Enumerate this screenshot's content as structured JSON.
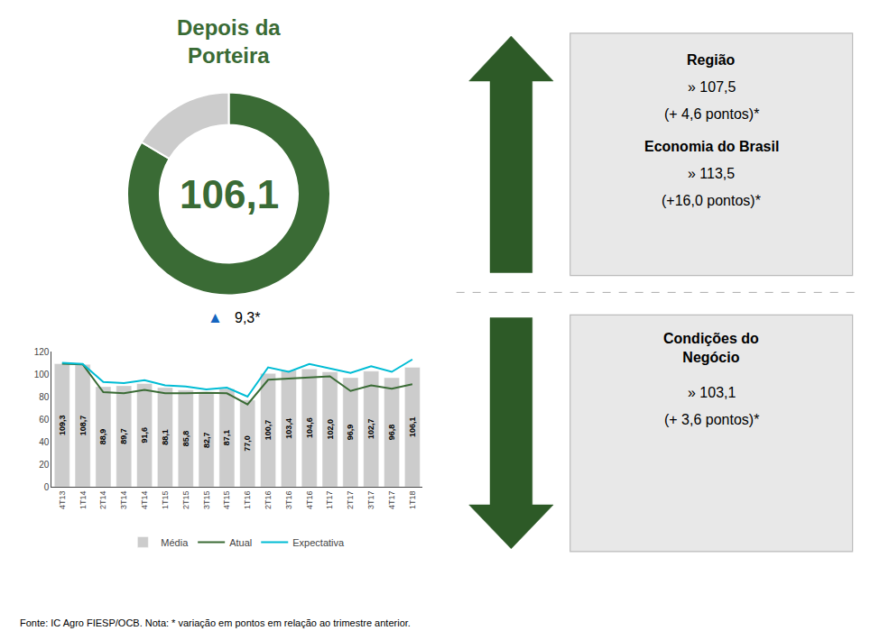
{
  "chart_data": [
    {
      "type": "pie",
      "title": "Depois da\nPorteira",
      "values": [
        0.835,
        0.165
      ],
      "colors": [
        "#3a6b35",
        "#cccccc"
      ],
      "color": "#3a6b35",
      "annotations": [
        {
          "text": "106,1"
        },
        {
          "text": "▲",
          "color": "#1565C0"
        },
        {
          "text": "9,3*"
        }
      ]
    },
    {
      "type": "bar",
      "categories": [
        "4T13",
        "1T14",
        "2T14",
        "3T14",
        "4T14",
        "1T15",
        "2T15",
        "3T15",
        "4T15",
        "1T16",
        "2T16",
        "3T16",
        "4T16",
        "1T17",
        "2T17",
        "3T17",
        "4T17",
        "1T18"
      ],
      "series": [
        {
          "name": "Média",
          "type": "bar",
          "color": "#cccccc",
          "data_labels": true,
          "values": [
            109.3,
            108.7,
            88.9,
            89.7,
            91.6,
            88.1,
            85.8,
            82.7,
            87.1,
            77.0,
            100.7,
            103.4,
            104.6,
            102.0,
            96.9,
            102.7,
            96.8,
            106.1
          ],
          "value_labels": [
            "109,3",
            "108,7",
            "88,9",
            "89,7",
            "91,6",
            "88,1",
            "85,8",
            "82,7",
            "87,1",
            "77,0",
            "100,7",
            "103,4",
            "104,6",
            "102,0",
            "96,9",
            "102,7",
            "96,8",
            "106,1"
          ]
        },
        {
          "name": "Atual",
          "type": "line",
          "color": "#3a6b35",
          "values": [
            109.3,
            108.7,
            84.0,
            83.0,
            86.0,
            83.0,
            83.0,
            83.5,
            83.0,
            73.0,
            95.0,
            96.0,
            97.0,
            98.0,
            85.0,
            90.0,
            87.0,
            91.0
          ]
        },
        {
          "name": "Expectativa",
          "type": "line",
          "color": "#00bcd4",
          "values": [
            110.0,
            109.0,
            93.0,
            92.0,
            94.5,
            90.0,
            89.0,
            86.5,
            88.0,
            80.0,
            106.0,
            102.0,
            109.0,
            105.0,
            101.0,
            107.0,
            102.0,
            113.0
          ]
        }
      ],
      "ylim": [
        0,
        120
      ],
      "yticks": [
        0,
        20,
        40,
        60,
        80,
        100,
        120
      ],
      "grid": false,
      "legend": "bottom",
      "annotations": [
        "Fonte: IC Agro FIESP/OCB. Nota: * variação em pontos em relação ao trimestre anterior."
      ]
    },
    {
      "type": "panel",
      "color": "#e8e8e8",
      "annotations": [
        {
          "marker": "arrow-up",
          "color": "#2d5a27",
          "sections": [
            {
              "title": "Região",
              "lines": [
                "» 107,5",
                "(+ 4,6 pontos)*"
              ]
            },
            {
              "title": "Economia do Brasil",
              "lines": [
                "» 113,5",
                "(+16,0 pontos)*"
              ]
            }
          ]
        },
        {
          "marker": "arrow-down",
          "color": "#2d5a27",
          "sections": [
            {
              "title": "Condições do\nNegócio",
              "lines": [
                "» 103,1",
                "(+ 3,6 pontos)*"
              ]
            }
          ]
        }
      ]
    }
  ]
}
